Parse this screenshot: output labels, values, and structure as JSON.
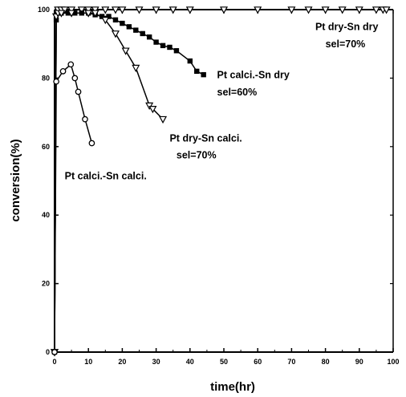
{
  "chart_data": {
    "type": "line",
    "title": "",
    "xlabel": "time(hr)",
    "ylabel": "conversion(%)",
    "xlim": [
      0,
      100
    ],
    "ylim": [
      0,
      100
    ],
    "x_ticks": [
      "0",
      "10",
      "20",
      "30",
      "40",
      "50",
      "60",
      "70",
      "80",
      "90",
      "100"
    ],
    "y_ticks": [
      "0",
      "20",
      "40",
      "60",
      "80",
      "100"
    ],
    "legend": "none",
    "grid": false,
    "series": [
      {
        "name": "Pt dry-Sn dry",
        "marker": "triangle-down-open",
        "points": [
          [
            0,
            0
          ],
          [
            0.5,
            98
          ],
          [
            1,
            100
          ],
          [
            2,
            100
          ],
          [
            3,
            100
          ],
          [
            5,
            100
          ],
          [
            8,
            100
          ],
          [
            10,
            100
          ],
          [
            12,
            100
          ],
          [
            15,
            100
          ],
          [
            18,
            100
          ],
          [
            20,
            100
          ],
          [
            25,
            100
          ],
          [
            30,
            100
          ],
          [
            35,
            100
          ],
          [
            40,
            100
          ],
          [
            50,
            100
          ],
          [
            60,
            100
          ],
          [
            70,
            100
          ],
          [
            75,
            100
          ],
          [
            80,
            100
          ],
          [
            85,
            100
          ],
          [
            90,
            100
          ],
          [
            95,
            100
          ],
          [
            97,
            100
          ],
          [
            98,
            100
          ]
        ]
      },
      {
        "name": "Pt calci.-Sn dry",
        "marker": "square-filled",
        "points": [
          [
            0,
            0
          ],
          [
            0.5,
            97
          ],
          [
            1,
            99
          ],
          [
            2,
            99
          ],
          [
            4,
            99
          ],
          [
            6,
            99
          ],
          [
            8,
            99
          ],
          [
            10,
            99
          ],
          [
            12,
            98.5
          ],
          [
            14,
            98
          ],
          [
            16,
            98
          ],
          [
            18,
            97
          ],
          [
            20,
            96
          ],
          [
            22,
            95
          ],
          [
            24,
            94
          ],
          [
            26,
            93
          ],
          [
            28,
            92
          ],
          [
            30,
            90.5
          ],
          [
            32,
            89.5
          ],
          [
            34,
            89
          ],
          [
            36,
            88
          ],
          [
            40,
            85
          ],
          [
            42,
            82
          ],
          [
            44,
            81
          ]
        ]
      },
      {
        "name": "Pt dry-Sn calci.",
        "marker": "triangle-down-open",
        "points": [
          [
            0,
            0
          ],
          [
            0.5,
            98
          ],
          [
            1,
            99
          ],
          [
            2,
            99
          ],
          [
            5,
            99
          ],
          [
            10,
            99
          ],
          [
            12,
            99
          ],
          [
            15,
            97
          ],
          [
            18,
            93
          ],
          [
            21,
            88
          ],
          [
            24,
            83
          ],
          [
            28,
            72
          ],
          [
            29,
            71
          ],
          [
            32,
            68
          ]
        ]
      },
      {
        "name": "Pt calci.-Sn calci.",
        "marker": "circle-open",
        "points": [
          [
            0,
            0
          ],
          [
            0.5,
            79
          ],
          [
            2.5,
            82
          ],
          [
            4.8,
            84
          ],
          [
            6,
            80
          ],
          [
            7,
            76
          ],
          [
            9,
            68
          ],
          [
            11,
            61
          ]
        ]
      }
    ],
    "annotations": [
      {
        "text": "Pt dry-Sn dry",
        "x": 77,
        "y": 94
      },
      {
        "text": "sel=70%",
        "x": 80,
        "y": 89
      },
      {
        "text": "Pt calci.-Sn dry",
        "x": 48,
        "y": 80
      },
      {
        "text": "sel=60%",
        "x": 48,
        "y": 75
      },
      {
        "text": "Pt dry-Sn calci.",
        "x": 34,
        "y": 61.5
      },
      {
        "text": "sel=70%",
        "x": 36,
        "y": 56.5
      },
      {
        "text": "Pt calci.-Sn calci.",
        "x": 3,
        "y": 50.5
      }
    ]
  }
}
